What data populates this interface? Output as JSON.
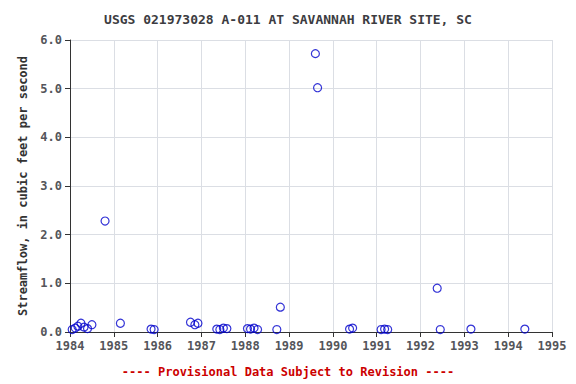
{
  "chart_data": {
    "type": "scatter",
    "title": "USGS 021973028 A-011 AT SAVANNAH RIVER SITE, SC",
    "ylabel": "Streamflow, in cubic feet per second",
    "annotations": [
      {
        "text": "---- Provisional Data Subject to Revision ----",
        "color": "#cc0000"
      }
    ],
    "x": [
      1984.05,
      1984.12,
      1984.18,
      1984.25,
      1984.32,
      1984.4,
      1984.5,
      1984.8,
      1985.15,
      1985.85,
      1985.92,
      1986.75,
      1986.85,
      1986.92,
      1987.35,
      1987.42,
      1987.5,
      1987.58,
      1988.05,
      1988.12,
      1988.2,
      1988.28,
      1988.72,
      1988.8,
      1989.6,
      1989.65,
      1990.38,
      1990.45,
      1991.1,
      1991.18,
      1991.25,
      1992.38,
      1992.45,
      1993.15,
      1994.38
    ],
    "values": [
      0.05,
      0.08,
      0.12,
      0.18,
      0.1,
      0.07,
      0.15,
      2.28,
      0.18,
      0.06,
      0.05,
      0.2,
      0.15,
      0.18,
      0.06,
      0.05,
      0.08,
      0.07,
      0.07,
      0.06,
      0.08,
      0.05,
      0.05,
      0.51,
      5.72,
      5.02,
      0.06,
      0.08,
      0.05,
      0.06,
      0.05,
      0.9,
      0.05,
      0.06,
      0.06
    ],
    "color": "#0000cc",
    "marker": "circle-open",
    "xlim": [
      1984,
      1995
    ],
    "ylim": [
      0,
      6
    ],
    "xticks": [
      1984,
      1985,
      1986,
      1987,
      1988,
      1989,
      1990,
      1991,
      1992,
      1993,
      1994,
      1995
    ],
    "yticks": [
      {
        "value": 0,
        "label": "0.0"
      },
      {
        "value": 1,
        "label": "1.0"
      },
      {
        "value": 2,
        "label": "2.0"
      },
      {
        "value": 3,
        "label": "3.0"
      },
      {
        "value": 4,
        "label": "4.0"
      },
      {
        "value": 5,
        "label": "5.0"
      },
      {
        "value": 6,
        "label": "6.0"
      }
    ],
    "grid": true
  }
}
